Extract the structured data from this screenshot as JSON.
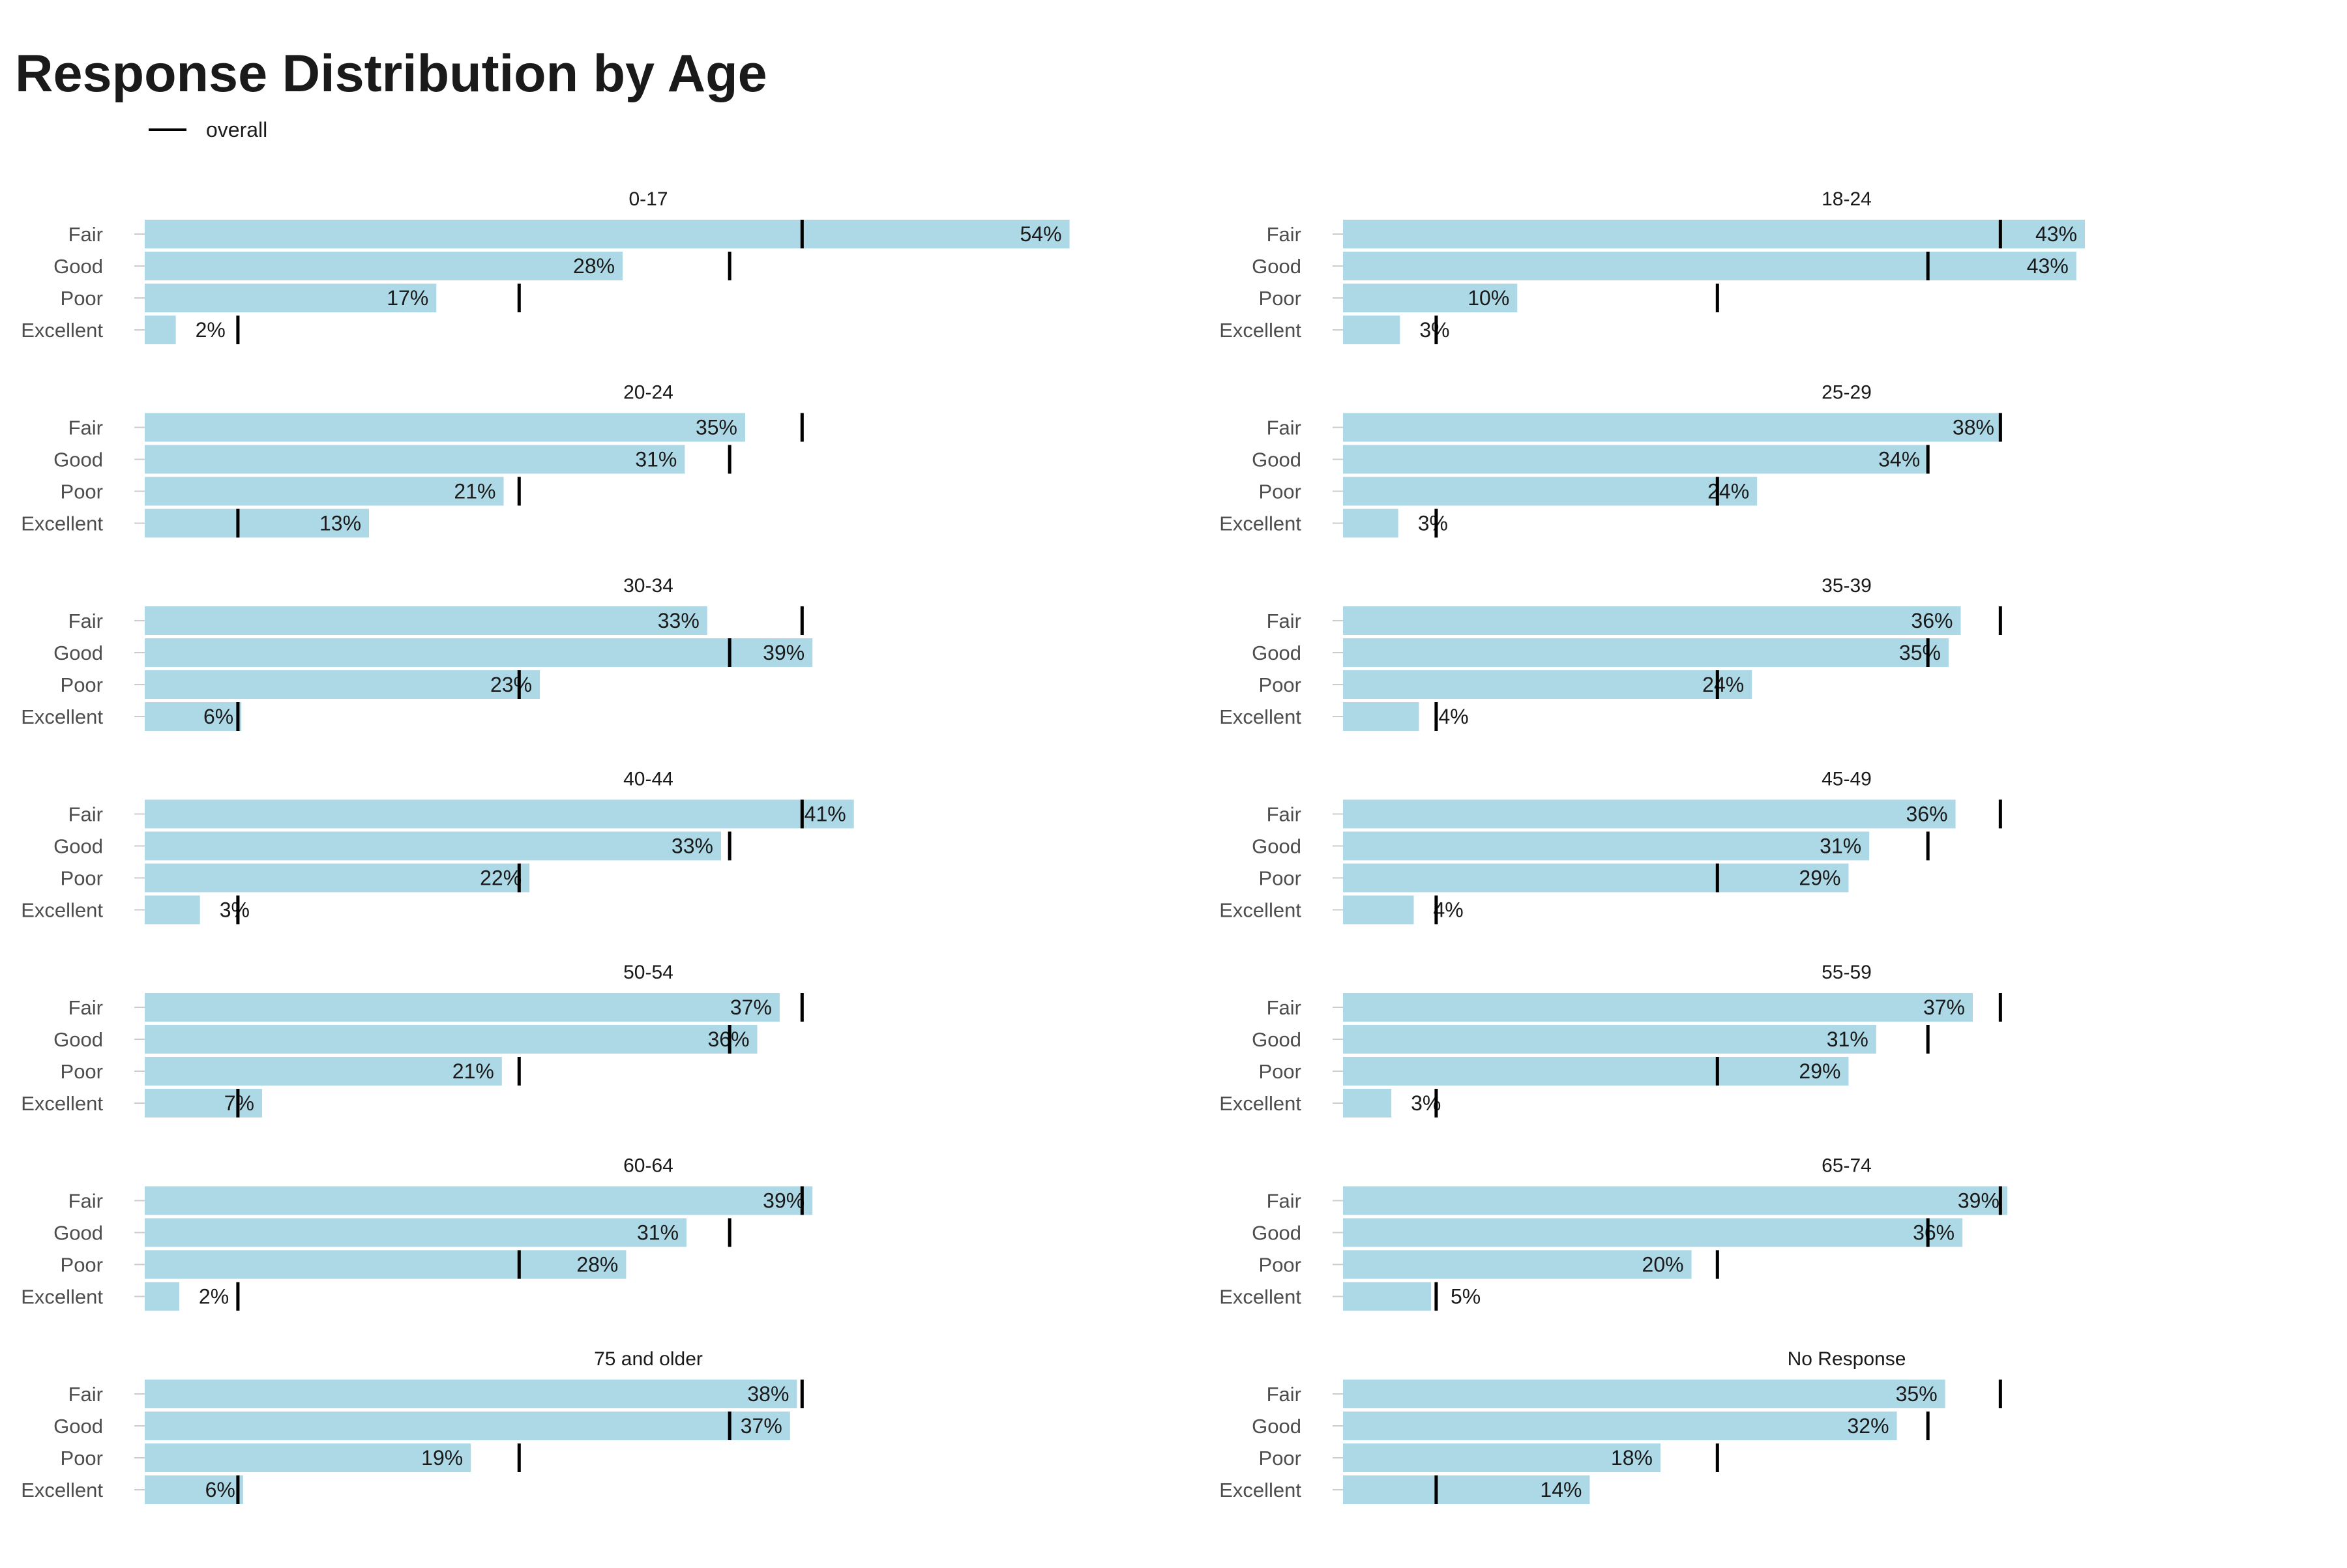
{
  "chart_data": {
    "type": "bar",
    "title": "Response Distribution by Age",
    "legend": {
      "label": "overall",
      "marker": "tick-line",
      "placement": "top-left"
    },
    "orientation": "horizontal",
    "facet_layout": "7 rows x 2 columns",
    "categories": [
      "Fair",
      "Good",
      "Poor",
      "Excellent"
    ],
    "overall": {
      "Fair": 38.1,
      "Good": 33.9,
      "Poor": 21.7,
      "Excellent": 5.4
    },
    "value_unit": "%",
    "xlim": [
      0,
      58
    ],
    "grid": false,
    "colors": {
      "bar": "#ADD8E6",
      "overall_marker": "#000000",
      "text": "#1a1a1a",
      "axis_label": "#4d4d4d",
      "tick": "#cccccc"
    },
    "panels": [
      {
        "title": "0-17",
        "values": [
          53.6,
          27.7,
          16.9,
          1.8
        ],
        "labels": [
          "54%",
          "28%",
          "17%",
          "2%"
        ]
      },
      {
        "title": "18-24",
        "values": [
          43.0,
          42.5,
          10.1,
          3.3
        ],
        "labels": [
          "43%",
          "43%",
          "10%",
          "3%"
        ]
      },
      {
        "title": "20-24",
        "values": [
          34.8,
          31.3,
          20.8,
          13.0
        ],
        "labels": [
          "35%",
          "31%",
          "21%",
          "13%"
        ]
      },
      {
        "title": "25-29",
        "values": [
          38.2,
          33.9,
          24.0,
          3.2
        ],
        "labels": [
          "38%",
          "34%",
          "24%",
          "3%"
        ]
      },
      {
        "title": "30-34",
        "values": [
          32.6,
          38.7,
          22.9,
          5.6
        ],
        "labels": [
          "33%",
          "39%",
          "23%",
          "6%"
        ]
      },
      {
        "title": "35-39",
        "values": [
          35.8,
          35.1,
          23.7,
          4.4
        ],
        "labels": [
          "36%",
          "35%",
          "24%",
          "4%"
        ]
      },
      {
        "title": "40-44",
        "values": [
          41.1,
          33.4,
          22.3,
          3.2
        ],
        "labels": [
          "41%",
          "33%",
          "22%",
          "3%"
        ]
      },
      {
        "title": "45-49",
        "values": [
          35.5,
          30.5,
          29.3,
          4.1
        ],
        "labels": [
          "36%",
          "31%",
          "29%",
          "4%"
        ]
      },
      {
        "title": "50-54",
        "values": [
          36.8,
          35.5,
          20.7,
          6.8
        ],
        "labels": [
          "37%",
          "36%",
          "21%",
          "7%"
        ]
      },
      {
        "title": "55-59",
        "values": [
          36.5,
          30.9,
          29.3,
          2.8
        ],
        "labels": [
          "37%",
          "31%",
          "29%",
          "3%"
        ]
      },
      {
        "title": "60-64",
        "values": [
          38.7,
          31.4,
          27.9,
          2.0
        ],
        "labels": [
          "39%",
          "31%",
          "28%",
          "2%"
        ]
      },
      {
        "title": "65-74",
        "values": [
          38.5,
          35.9,
          20.2,
          5.1
        ],
        "labels": [
          "39%",
          "36%",
          "20%",
          "5%"
        ]
      },
      {
        "title": "75 and older",
        "values": [
          37.8,
          37.4,
          18.9,
          5.7
        ],
        "labels": [
          "38%",
          "37%",
          "19%",
          "6%"
        ]
      },
      {
        "title": "No Response",
        "values": [
          34.9,
          32.1,
          18.4,
          14.3
        ],
        "labels": [
          "35%",
          "32%",
          "18%",
          "14%"
        ]
      }
    ]
  }
}
